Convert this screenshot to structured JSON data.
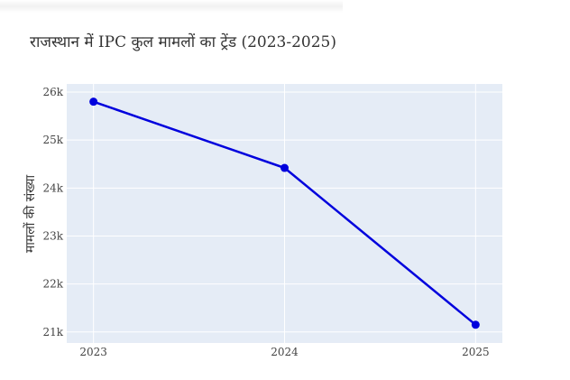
{
  "chart_data": {
    "type": "line",
    "title": "राजस्थान में IPC कुल मामलों का ट्रेंड (2023-2025)",
    "xlabel": "",
    "ylabel": "मामलों की संख्या",
    "x": [
      2023,
      2024,
      2025
    ],
    "x_tick_labels": [
      "2023",
      "2024",
      "2025"
    ],
    "y_ticks": [
      21000,
      22000,
      23000,
      24000,
      25000,
      26000
    ],
    "y_tick_labels": [
      "21k",
      "22k",
      "23k",
      "24k",
      "25k",
      "26k"
    ],
    "series": [
      {
        "values": [
          25800,
          24420,
          21150
        ],
        "color": "#0000dd",
        "mode": "lines+markers"
      }
    ],
    "ylim": [
      20770,
      26170
    ],
    "xlim": [
      2022.86,
      2025.14
    ],
    "grid": true,
    "plot_background": "#e5ecf6"
  }
}
